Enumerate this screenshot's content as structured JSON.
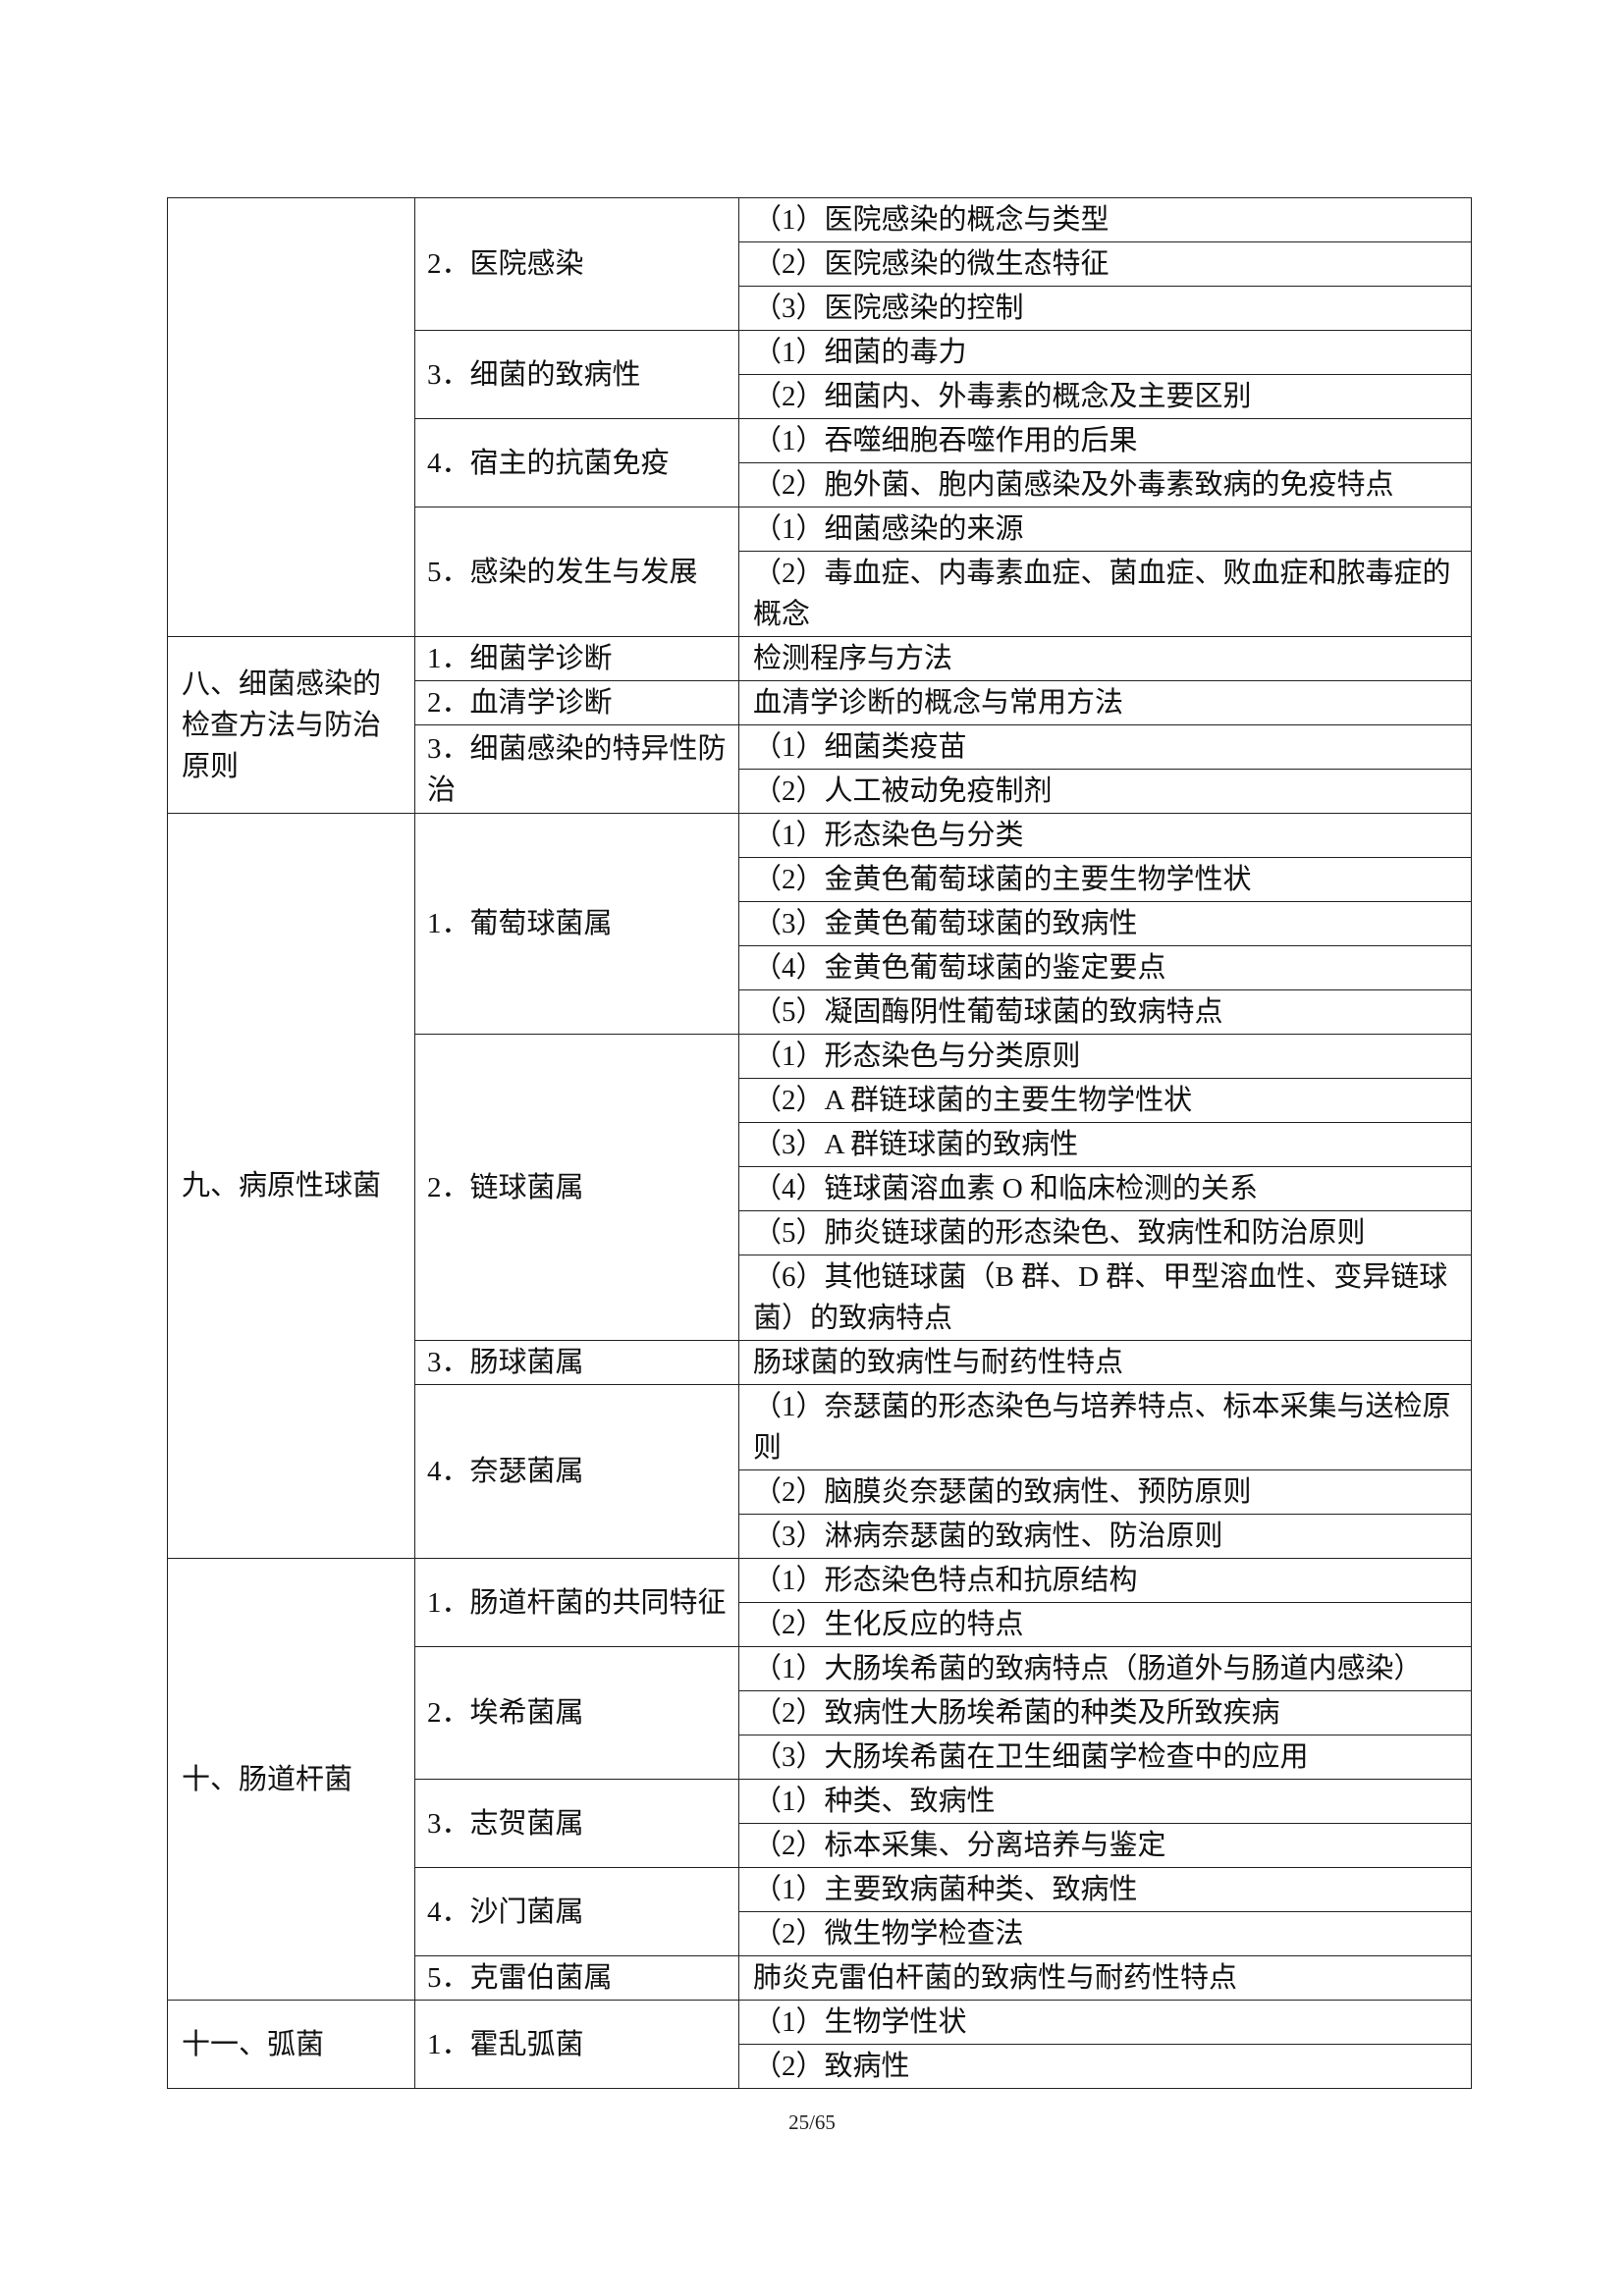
{
  "sections": [
    {
      "title": "",
      "items": [
        {
          "label": "2．医院感染",
          "points": [
            "（1）医院感染的概念与类型",
            "（2）医院感染的微生态特征",
            "（3）医院感染的控制"
          ]
        },
        {
          "label": "3．细菌的致病性",
          "points": [
            "（1）细菌的毒力",
            "（2）细菌内、外毒素的概念及主要区别"
          ]
        },
        {
          "label": "4．宿主的抗菌免疫",
          "points": [
            "（1）吞噬细胞吞噬作用的后果",
            "（2）胞外菌、胞内菌感染及外毒素致病的免疫特点"
          ]
        },
        {
          "label": "5．感染的发生与发展",
          "points": [
            "（1）细菌感染的来源",
            "（2）毒血症、内毒素血症、菌血症、败血症和脓毒症的概念"
          ]
        }
      ]
    },
    {
      "title": "八、细菌感染的检查方法与防治原则",
      "items": [
        {
          "label": "1．细菌学诊断",
          "points": [
            "检测程序与方法"
          ]
        },
        {
          "label": "2．血清学诊断",
          "points": [
            "血清学诊断的概念与常用方法"
          ]
        },
        {
          "label": "3．细菌感染的特异性防治",
          "points": [
            "（1）细菌类疫苗",
            "（2）人工被动免疫制剂"
          ]
        }
      ]
    },
    {
      "title": "九、病原性球菌",
      "items": [
        {
          "label": "1．葡萄球菌属",
          "points": [
            "（1）形态染色与分类",
            "（2）金黄色葡萄球菌的主要生物学性状",
            "（3）金黄色葡萄球菌的致病性",
            "（4）金黄色葡萄球菌的鉴定要点",
            "（5）凝固酶阴性葡萄球菌的致病特点"
          ]
        },
        {
          "label": "2．链球菌属",
          "points": [
            "（1）形态染色与分类原则",
            "（2）A 群链球菌的主要生物学性状",
            "（3）A 群链球菌的致病性",
            "（4）链球菌溶血素 O 和临床检测的关系",
            "（5）肺炎链球菌的形态染色、致病性和防治原则",
            "（6）其他链球菌（B 群、D 群、甲型溶血性、变异链球菌）的致病特点"
          ]
        },
        {
          "label": "3．肠球菌属",
          "points": [
            "肠球菌的致病性与耐药性特点"
          ]
        },
        {
          "label": "4．奈瑟菌属",
          "points": [
            "（1）奈瑟菌的形态染色与培养特点、标本采集与送检原则",
            "（2）脑膜炎奈瑟菌的致病性、预防原则",
            "（3）淋病奈瑟菌的致病性、防治原则"
          ]
        }
      ]
    },
    {
      "title": "十、肠道杆菌",
      "items": [
        {
          "label": "1．肠道杆菌的共同特征",
          "points": [
            "（1）形态染色特点和抗原结构",
            "（2）生化反应的特点"
          ]
        },
        {
          "label": "2．埃希菌属",
          "points": [
            "（1）大肠埃希菌的致病特点（肠道外与肠道内感染）",
            "（2）致病性大肠埃希菌的种类及所致疾病",
            "（3）大肠埃希菌在卫生细菌学检查中的应用"
          ]
        },
        {
          "label": "3．志贺菌属",
          "points": [
            "（1）种类、致病性",
            "（2）标本采集、分离培养与鉴定"
          ]
        },
        {
          "label": "4．沙门菌属",
          "points": [
            "（1）主要致病菌种类、致病性",
            "（2）微生物学检查法"
          ]
        },
        {
          "label": "5．克雷伯菌属",
          "points": [
            "肺炎克雷伯杆菌的致病性与耐药性特点"
          ]
        }
      ]
    },
    {
      "title": "十一、弧菌",
      "items": [
        {
          "label": "1．霍乱弧菌",
          "points": [
            "（1）生物学性状",
            "（2）致病性"
          ]
        }
      ]
    }
  ],
  "page_number": "25/65"
}
